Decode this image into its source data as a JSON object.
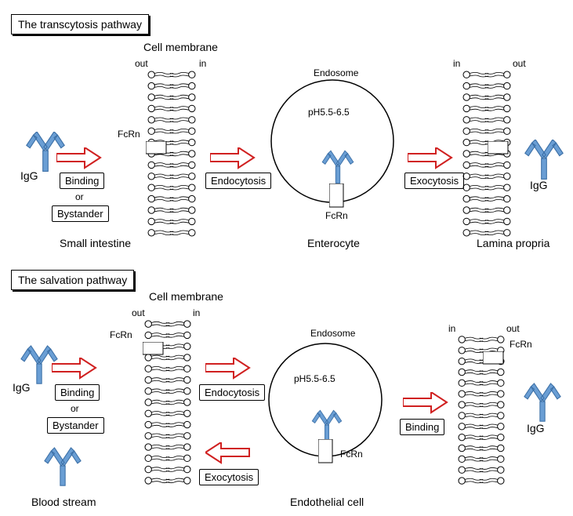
{
  "colors": {
    "igg": "#6a9ed4",
    "arrow_stroke": "#d02020",
    "arrow_fill": "#ffffff",
    "membrane": "#000000",
    "fcrn_box": "#ffffff",
    "fcrn_stroke": "#000000"
  },
  "transcytosis": {
    "title": "The transcytosis pathway",
    "labels": {
      "cell_membrane_top": "Cell membrane",
      "out_left": "out",
      "in_left": "in",
      "out_right": "out",
      "in_right": "in",
      "fcrn_left": "FcRn",
      "fcrn_endosome": "FcRn",
      "igg_left": "IgG",
      "igg_right": "IgG",
      "endosome": "Endosome",
      "ph": "pH5.5-6.5",
      "location_left": "Small intestine",
      "location_center": "Enterocyte",
      "location_right": "Lamina propria",
      "step1a": "Binding",
      "step1b": "or",
      "step1c": "Bystander",
      "step2": "Endocytosis",
      "step3": "Exocytosis"
    }
  },
  "salvation": {
    "title": "The salvation pathway",
    "labels": {
      "cell_membrane_top": "Cell membrane",
      "out_left": "out",
      "in_left": "in",
      "out_right": "out",
      "in_right": "in",
      "fcrn_left": "FcRn",
      "fcrn_endosome": "FcRn",
      "igg_left": "IgG",
      "igg_right": "IgG",
      "endosome": "Endosome",
      "ph": "pH5.5-6.5",
      "location_left": "Blood stream",
      "location_center": "Endothelial cell",
      "step1a": "Binding",
      "step1b": "or",
      "step1c": "Bystander",
      "step2": "Endocytosis",
      "step3": "Exocytosis"
    }
  },
  "geometry": {
    "igg_scale": 1.0,
    "arrow_length": 56,
    "arrow_height": 26,
    "membrane_width": 56,
    "membrane_height_t": 220,
    "membrane_height_s": 200,
    "endosome_r": 78,
    "endosome_r_s": 70
  }
}
